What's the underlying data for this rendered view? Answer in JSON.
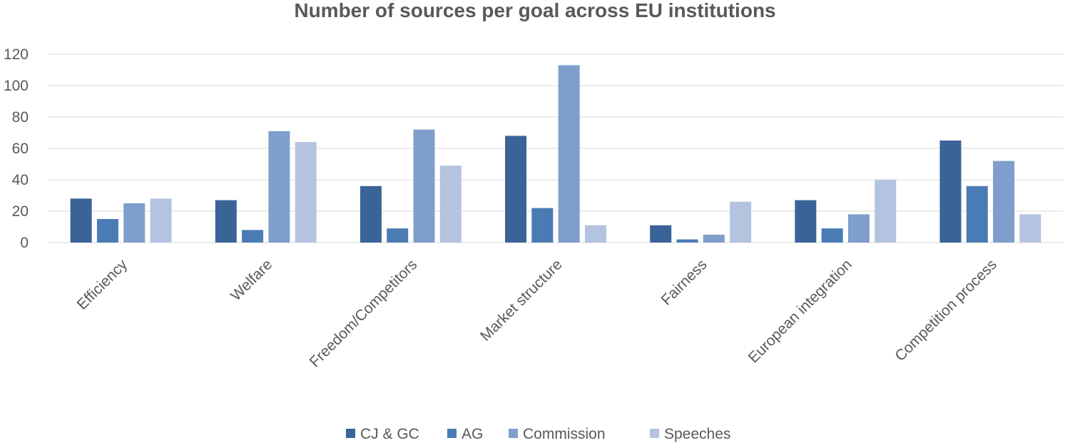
{
  "chart_data": {
    "type": "bar",
    "title": "Number of sources per goal across EU institutions",
    "xlabel": "",
    "ylabel": "",
    "ylim": [
      0,
      120
    ],
    "yticks": [
      0,
      20,
      40,
      60,
      80,
      100,
      120
    ],
    "grid": true,
    "legend_position": "bottom",
    "categories": [
      "Efficiency",
      "Welfare",
      "Freedom/Competitors",
      "Market structure",
      "Fairness",
      "European integration",
      "Competition process"
    ],
    "series": [
      {
        "name": "CJ & GC",
        "color": "#3a6497",
        "values": [
          28,
          27,
          36,
          68,
          11,
          27,
          65
        ]
      },
      {
        "name": "AG",
        "color": "#4b7bb4",
        "values": [
          15,
          8,
          9,
          22,
          2,
          9,
          36
        ]
      },
      {
        "name": "Commission",
        "color": "#7f9ecb",
        "values": [
          25,
          71,
          72,
          113,
          5,
          18,
          52
        ]
      },
      {
        "name": "Speeches",
        "color": "#b3c3e0",
        "values": [
          28,
          64,
          49,
          11,
          26,
          40,
          18
        ]
      }
    ]
  }
}
